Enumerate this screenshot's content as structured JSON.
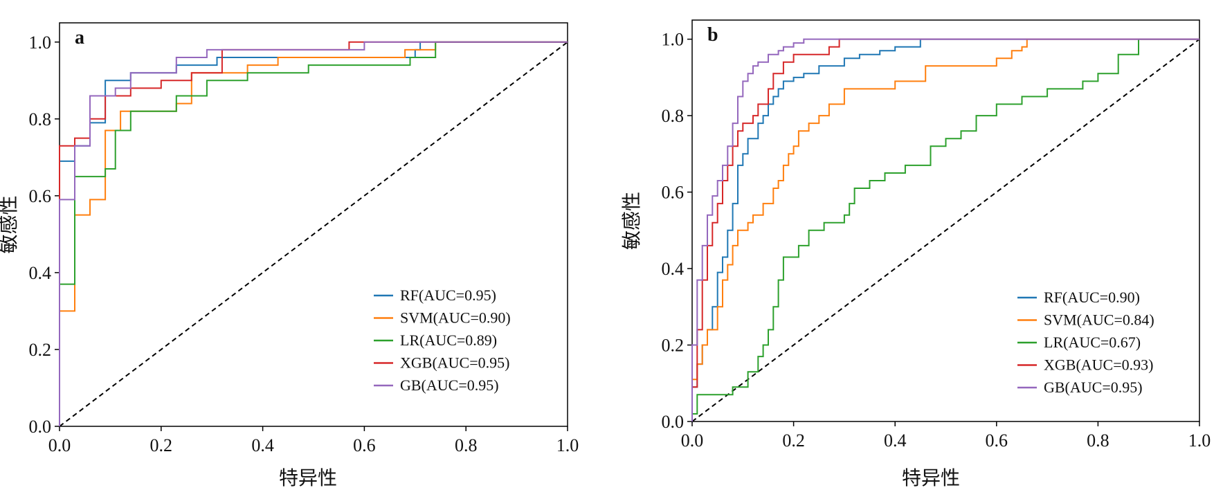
{
  "chart_data": [
    {
      "type": "line",
      "panel_label": "a",
      "xlabel": "特异性",
      "ylabel": "敏感性",
      "xlim": [
        0,
        1
      ],
      "ylim": [
        0,
        1.05
      ],
      "xticks": [
        "0.0",
        "0.2",
        "0.4",
        "0.6",
        "0.8",
        "1.0"
      ],
      "yticks": [
        "0.0",
        "0.2",
        "0.4",
        "0.6",
        "0.8",
        "1.0"
      ],
      "grid": false,
      "legend_position": "lower-right",
      "diagonal": {
        "style": "dashed",
        "color": "#000000",
        "from": [
          0,
          0
        ],
        "to": [
          1,
          1
        ]
      },
      "series": [
        {
          "name": "RF(AUC=0.95)",
          "color": "#1f77b4",
          "x": [
            0,
            0,
            0.03,
            0.03,
            0.06,
            0.06,
            0.09,
            0.09,
            0.14,
            0.14,
            0.23,
            0.23,
            0.31,
            0.31,
            0.42,
            0.42,
            0.7,
            0.7,
            0.71,
            0.71,
            1
          ],
          "y": [
            0,
            0.69,
            0.69,
            0.73,
            0.73,
            0.79,
            0.79,
            0.9,
            0.9,
            0.92,
            0.92,
            0.94,
            0.94,
            0.96,
            0.96,
            0.96,
            0.96,
            0.98,
            0.98,
            1,
            1
          ]
        },
        {
          "name": "SVM(AUC=0.90)",
          "color": "#ff7f0e",
          "x": [
            0,
            0,
            0.03,
            0.03,
            0.06,
            0.06,
            0.09,
            0.09,
            0.12,
            0.12,
            0.23,
            0.23,
            0.26,
            0.26,
            0.37,
            0.37,
            0.43,
            0.43,
            0.68,
            0.68,
            0.74,
            0.74,
            1
          ],
          "y": [
            0,
            0.3,
            0.3,
            0.55,
            0.55,
            0.59,
            0.59,
            0.77,
            0.77,
            0.82,
            0.82,
            0.84,
            0.84,
            0.92,
            0.92,
            0.94,
            0.94,
            0.96,
            0.96,
            0.98,
            0.98,
            1,
            1
          ]
        },
        {
          "name": "LR(AUC=0.89)",
          "color": "#2ca02c",
          "x": [
            0,
            0,
            0.03,
            0.03,
            0.09,
            0.09,
            0.11,
            0.11,
            0.14,
            0.14,
            0.23,
            0.23,
            0.29,
            0.29,
            0.37,
            0.37,
            0.49,
            0.49,
            0.69,
            0.69,
            0.74,
            0.74,
            1
          ],
          "y": [
            0,
            0.37,
            0.37,
            0.65,
            0.65,
            0.67,
            0.67,
            0.77,
            0.77,
            0.82,
            0.82,
            0.86,
            0.86,
            0.9,
            0.9,
            0.92,
            0.92,
            0.94,
            0.94,
            0.96,
            0.96,
            1,
            1
          ]
        },
        {
          "name": "XGB(AUC=0.95)",
          "color": "#d62728",
          "x": [
            0,
            0,
            0.03,
            0.03,
            0.06,
            0.06,
            0.09,
            0.09,
            0.14,
            0.14,
            0.2,
            0.2,
            0.26,
            0.26,
            0.32,
            0.32,
            0.57,
            0.57,
            0.6,
            0.6,
            1
          ],
          "y": [
            0,
            0.73,
            0.73,
            0.75,
            0.75,
            0.8,
            0.8,
            0.86,
            0.86,
            0.88,
            0.88,
            0.9,
            0.9,
            0.92,
            0.92,
            0.98,
            0.98,
            1,
            1,
            1,
            1
          ]
        },
        {
          "name": "GB(AUC=0.95)",
          "color": "#9467bd",
          "x": [
            0,
            0,
            0.03,
            0.03,
            0.06,
            0.06,
            0.11,
            0.11,
            0.14,
            0.14,
            0.23,
            0.23,
            0.29,
            0.29,
            0.6,
            0.6,
            1
          ],
          "y": [
            0,
            0.59,
            0.59,
            0.73,
            0.73,
            0.86,
            0.86,
            0.88,
            0.88,
            0.92,
            0.92,
            0.96,
            0.96,
            0.98,
            0.98,
            1,
            1
          ]
        }
      ]
    },
    {
      "type": "line",
      "panel_label": "b",
      "xlabel": "特异性",
      "ylabel": "敏感性",
      "xlim": [
        0,
        1
      ],
      "ylim": [
        0,
        1.05
      ],
      "xticks": [
        "0.0",
        "0.2",
        "0.4",
        "0.6",
        "0.8",
        "1.0"
      ],
      "yticks": [
        "0.0",
        "0.2",
        "0.4",
        "0.6",
        "0.8",
        "1.0"
      ],
      "grid": false,
      "legend_position": "lower-right",
      "diagonal": {
        "style": "dashed",
        "color": "#000000",
        "from": [
          0,
          0
        ],
        "to": [
          1,
          1
        ]
      },
      "series": [
        {
          "name": "RF(AUC=0.90)",
          "color": "#1f77b4",
          "x": [
            0,
            0,
            0.01,
            0.01,
            0.02,
            0.02,
            0.03,
            0.03,
            0.04,
            0.04,
            0.05,
            0.05,
            0.06,
            0.06,
            0.07,
            0.07,
            0.08,
            0.08,
            0.09,
            0.09,
            0.1,
            0.1,
            0.11,
            0.11,
            0.13,
            0.13,
            0.14,
            0.14,
            0.15,
            0.15,
            0.16,
            0.16,
            0.17,
            0.17,
            0.18,
            0.18,
            0.2,
            0.2,
            0.22,
            0.22,
            0.25,
            0.25,
            0.3,
            0.3,
            0.33,
            0.33,
            0.37,
            0.37,
            0.4,
            0.4,
            0.45,
            0.45,
            1
          ],
          "y": [
            0,
            0.09,
            0.09,
            0.15,
            0.15,
            0.2,
            0.2,
            0.24,
            0.24,
            0.3,
            0.3,
            0.39,
            0.39,
            0.43,
            0.43,
            0.5,
            0.5,
            0.57,
            0.57,
            0.67,
            0.67,
            0.7,
            0.7,
            0.74,
            0.74,
            0.78,
            0.78,
            0.8,
            0.8,
            0.83,
            0.83,
            0.85,
            0.85,
            0.87,
            0.87,
            0.89,
            0.89,
            0.9,
            0.9,
            0.91,
            0.91,
            0.93,
            0.93,
            0.95,
            0.95,
            0.96,
            0.96,
            0.97,
            0.97,
            0.98,
            0.98,
            1,
            1
          ]
        },
        {
          "name": "SVM(AUC=0.84)",
          "color": "#ff7f0e",
          "x": [
            0,
            0,
            0.01,
            0.01,
            0.02,
            0.02,
            0.03,
            0.03,
            0.05,
            0.05,
            0.06,
            0.06,
            0.07,
            0.07,
            0.08,
            0.08,
            0.09,
            0.09,
            0.11,
            0.11,
            0.12,
            0.12,
            0.14,
            0.14,
            0.16,
            0.16,
            0.17,
            0.17,
            0.18,
            0.18,
            0.19,
            0.19,
            0.2,
            0.2,
            0.21,
            0.21,
            0.23,
            0.23,
            0.25,
            0.25,
            0.27,
            0.27,
            0.3,
            0.3,
            0.4,
            0.4,
            0.46,
            0.46,
            0.6,
            0.6,
            0.63,
            0.63,
            0.65,
            0.65,
            0.66,
            0.66,
            1
          ],
          "y": [
            0,
            0.11,
            0.11,
            0.15,
            0.15,
            0.2,
            0.2,
            0.24,
            0.24,
            0.3,
            0.3,
            0.37,
            0.37,
            0.41,
            0.41,
            0.46,
            0.46,
            0.5,
            0.5,
            0.52,
            0.52,
            0.54,
            0.54,
            0.57,
            0.57,
            0.61,
            0.61,
            0.63,
            0.63,
            0.67,
            0.67,
            0.7,
            0.7,
            0.72,
            0.72,
            0.76,
            0.76,
            0.78,
            0.78,
            0.8,
            0.8,
            0.83,
            0.83,
            0.87,
            0.87,
            0.89,
            0.89,
            0.93,
            0.93,
            0.95,
            0.95,
            0.97,
            0.97,
            0.98,
            0.98,
            1,
            1
          ]
        },
        {
          "name": "LR(AUC=0.67)",
          "color": "#2ca02c",
          "x": [
            0,
            0,
            0.01,
            0.01,
            0.08,
            0.08,
            0.11,
            0.11,
            0.13,
            0.13,
            0.14,
            0.14,
            0.15,
            0.15,
            0.16,
            0.16,
            0.17,
            0.17,
            0.18,
            0.18,
            0.21,
            0.21,
            0.23,
            0.23,
            0.26,
            0.26,
            0.3,
            0.3,
            0.31,
            0.31,
            0.32,
            0.32,
            0.35,
            0.35,
            0.38,
            0.38,
            0.42,
            0.42,
            0.47,
            0.47,
            0.5,
            0.5,
            0.53,
            0.53,
            0.56,
            0.56,
            0.6,
            0.6,
            0.65,
            0.65,
            0.7,
            0.7,
            0.77,
            0.77,
            0.8,
            0.8,
            0.84,
            0.84,
            0.88,
            0.88,
            1
          ],
          "y": [
            0,
            0.02,
            0.02,
            0.07,
            0.07,
            0.09,
            0.09,
            0.13,
            0.13,
            0.17,
            0.17,
            0.2,
            0.2,
            0.24,
            0.24,
            0.3,
            0.3,
            0.37,
            0.37,
            0.43,
            0.43,
            0.46,
            0.46,
            0.5,
            0.5,
            0.52,
            0.52,
            0.54,
            0.54,
            0.57,
            0.57,
            0.61,
            0.61,
            0.63,
            0.63,
            0.65,
            0.65,
            0.67,
            0.67,
            0.72,
            0.72,
            0.74,
            0.74,
            0.76,
            0.76,
            0.8,
            0.8,
            0.83,
            0.83,
            0.85,
            0.85,
            0.87,
            0.87,
            0.89,
            0.89,
            0.91,
            0.91,
            0.96,
            0.96,
            1,
            1
          ]
        },
        {
          "name": "XGB(AUC=0.93)",
          "color": "#d62728",
          "x": [
            0,
            0,
            0.01,
            0.01,
            0.02,
            0.02,
            0.03,
            0.03,
            0.04,
            0.04,
            0.05,
            0.05,
            0.06,
            0.06,
            0.07,
            0.07,
            0.08,
            0.08,
            0.09,
            0.09,
            0.1,
            0.1,
            0.12,
            0.12,
            0.13,
            0.13,
            0.15,
            0.15,
            0.16,
            0.16,
            0.18,
            0.18,
            0.2,
            0.2,
            0.27,
            0.27,
            0.29,
            0.29,
            1
          ],
          "y": [
            0,
            0.09,
            0.09,
            0.24,
            0.24,
            0.37,
            0.37,
            0.46,
            0.46,
            0.52,
            0.52,
            0.57,
            0.57,
            0.63,
            0.63,
            0.67,
            0.67,
            0.72,
            0.72,
            0.76,
            0.76,
            0.78,
            0.78,
            0.8,
            0.8,
            0.83,
            0.83,
            0.87,
            0.87,
            0.91,
            0.91,
            0.94,
            0.94,
            0.96,
            0.96,
            0.98,
            0.98,
            1,
            1
          ]
        },
        {
          "name": "GB(AUC=0.95)",
          "color": "#9467bd",
          "x": [
            0,
            0,
            0.01,
            0.01,
            0.02,
            0.02,
            0.03,
            0.03,
            0.04,
            0.04,
            0.05,
            0.05,
            0.06,
            0.06,
            0.07,
            0.07,
            0.08,
            0.08,
            0.09,
            0.09,
            0.1,
            0.1,
            0.11,
            0.11,
            0.12,
            0.12,
            0.13,
            0.13,
            0.15,
            0.15,
            0.17,
            0.17,
            0.18,
            0.18,
            0.2,
            0.2,
            0.22,
            0.22,
            1
          ],
          "y": [
            0,
            0.2,
            0.2,
            0.37,
            0.37,
            0.46,
            0.46,
            0.54,
            0.54,
            0.59,
            0.59,
            0.63,
            0.63,
            0.67,
            0.67,
            0.72,
            0.72,
            0.78,
            0.78,
            0.85,
            0.85,
            0.89,
            0.89,
            0.91,
            0.91,
            0.93,
            0.93,
            0.94,
            0.94,
            0.96,
            0.96,
            0.97,
            0.97,
            0.98,
            0.98,
            0.99,
            0.99,
            1,
            1
          ]
        }
      ]
    }
  ]
}
